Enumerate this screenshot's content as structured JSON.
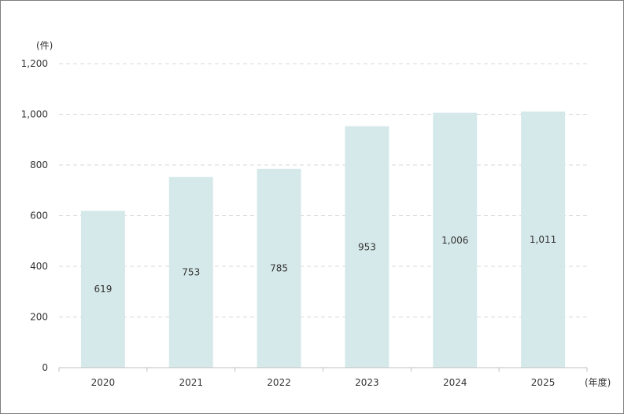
{
  "chart_data": {
    "type": "bar",
    "title": "",
    "xlabel": "(年度)",
    "ylabel": "(件)",
    "categories": [
      "2020",
      "2021",
      "2022",
      "2023",
      "2024",
      "2025"
    ],
    "values": [
      619,
      753,
      785,
      953,
      1006,
      1011
    ],
    "data_labels": [
      "619",
      "753",
      "785",
      "953",
      "1,006",
      "1,011"
    ],
    "ylim": [
      0,
      1200
    ],
    "yticks": [
      0,
      200,
      400,
      600,
      800,
      1000,
      1200
    ],
    "ytick_labels": [
      "0",
      "200",
      "400",
      "600",
      "800",
      "1,000",
      "1,200"
    ],
    "grid": true,
    "grid_style": "dashed",
    "legend": "none",
    "bar_color": "#d6e9ea",
    "grid_color": "#d9d9d9",
    "axis_color": "#bfbfbf"
  }
}
